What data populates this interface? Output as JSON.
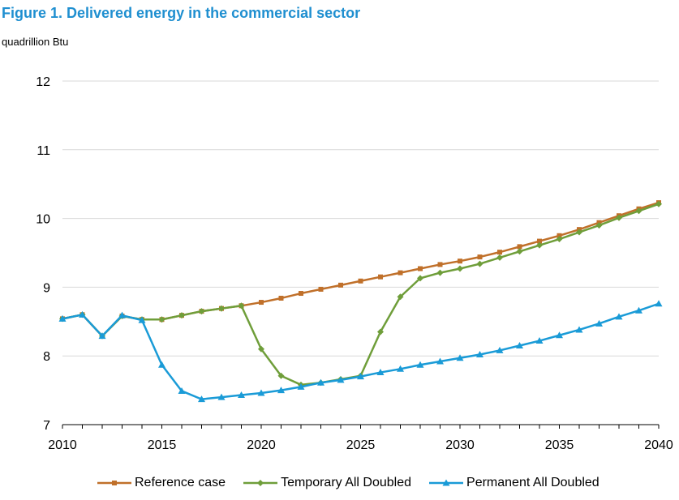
{
  "figure_title": "Figure 1. Delivered energy in the commercial sector",
  "unit_label": "quadrillion Btu",
  "colors": {
    "title": "#1f8fd0",
    "reference": "#c0702a",
    "temporary": "#6f9e3a",
    "permanent": "#1a9bd7",
    "axis": "#000000",
    "grid": "#d9d9d9"
  },
  "chart_data": {
    "type": "line",
    "title": "Figure 1. Delivered energy in the commercial sector",
    "xlabel": "",
    "ylabel": "quadrillion Btu",
    "xlim": [
      2010,
      2040
    ],
    "ylim": [
      7,
      12
    ],
    "grid": "horizontal",
    "legend_position": "bottom",
    "x_tick_labels": [
      "2010",
      "2015",
      "2020",
      "2025",
      "2030",
      "2035",
      "2040"
    ],
    "y_tick_labels": [
      "7",
      "8",
      "9",
      "10",
      "11",
      "12"
    ],
    "x": [
      2010,
      2011,
      2012,
      2013,
      2014,
      2015,
      2016,
      2017,
      2018,
      2019,
      2020,
      2021,
      2022,
      2023,
      2024,
      2025,
      2026,
      2027,
      2028,
      2029,
      2030,
      2031,
      2032,
      2033,
      2034,
      2035,
      2036,
      2037,
      2038,
      2039,
      2040
    ],
    "series": [
      {
        "name": "Reference case",
        "marker": "square",
        "color": "#c0702a",
        "values": [
          8.54,
          8.6,
          8.29,
          8.58,
          8.53,
          8.53,
          8.59,
          8.65,
          8.69,
          8.73,
          8.78,
          8.84,
          8.91,
          8.97,
          9.03,
          9.09,
          9.15,
          9.21,
          9.27,
          9.33,
          9.38,
          9.44,
          9.51,
          9.59,
          9.67,
          9.75,
          9.84,
          9.94,
          10.04,
          10.14,
          10.23
        ]
      },
      {
        "name": "Temporary All Doubled",
        "marker": "diamond",
        "color": "#6f9e3a",
        "values": [
          8.54,
          8.6,
          8.29,
          8.58,
          8.53,
          8.53,
          8.59,
          8.65,
          8.69,
          8.73,
          8.1,
          7.71,
          7.58,
          7.61,
          7.66,
          7.71,
          8.35,
          8.86,
          9.13,
          9.21,
          9.27,
          9.34,
          9.43,
          9.52,
          9.61,
          9.7,
          9.8,
          9.9,
          10.01,
          10.11,
          10.21
        ]
      },
      {
        "name": "Permanent All Doubled",
        "marker": "triangle",
        "color": "#1a9bd7",
        "values": [
          8.54,
          8.6,
          8.29,
          8.59,
          8.52,
          7.87,
          7.49,
          7.37,
          7.4,
          7.43,
          7.46,
          7.5,
          7.55,
          7.61,
          7.65,
          7.7,
          7.76,
          7.81,
          7.87,
          7.92,
          7.97,
          8.02,
          8.08,
          8.15,
          8.22,
          8.3,
          8.38,
          8.47,
          8.57,
          8.66,
          8.76
        ]
      }
    ]
  }
}
